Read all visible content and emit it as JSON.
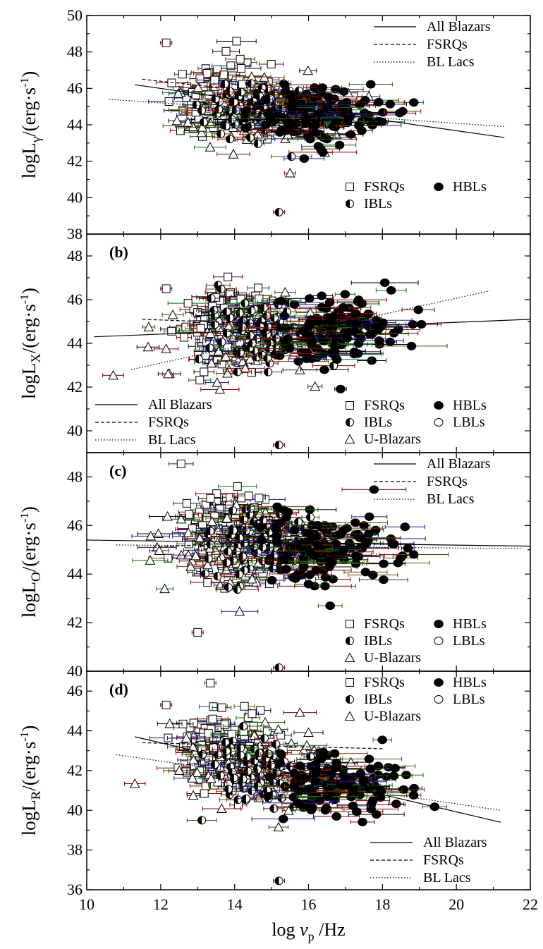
{
  "chart_data": [
    {
      "type": "scatter",
      "panel_label": "",
      "ylabel_main": "logL",
      "ylabel_sub": "γ",
      "ylabel_unit": "/(erg·s",
      "ylabel_exp": "-1",
      "ylim": [
        38,
        50
      ],
      "yticks": [
        38,
        40,
        42,
        44,
        46,
        48,
        50
      ],
      "xlim": [
        10,
        22
      ],
      "lines": [
        {
          "name": "All Blazars",
          "style": "solid",
          "x": [
            11.3,
            21.3
          ],
          "y": [
            46.2,
            43.3
          ]
        },
        {
          "name": "FSRQs",
          "style": "dashed",
          "x": [
            11.5,
            17.0
          ],
          "y": [
            46.5,
            45.3
          ]
        },
        {
          "name": "BL Lacs",
          "style": "dotted",
          "x": [
            10.6,
            21.3
          ],
          "y": [
            45.4,
            43.9
          ]
        }
      ],
      "line_legend_pos": "top-right",
      "marker_legend": [
        "FSRQs",
        "HBLs",
        "IBLs"
      ],
      "marker_legend_pos": "bottom-right",
      "outliers": [
        {
          "cls": "IBLs",
          "x": 15.2,
          "y": 39.2
        },
        {
          "cls": "FSRQs",
          "x": 12.15,
          "y": 48.5
        },
        {
          "cls": "U-Blazars",
          "x": 15.5,
          "y": 41.35
        }
      ],
      "cloud": {
        "fsrq": [
          13.8,
          1.0,
          45.3,
          1.4
        ],
        "ibl": [
          14.6,
          1.0,
          45.0,
          1.0
        ],
        "hbl": [
          16.2,
          1.3,
          44.5,
          1.0
        ],
        "ub": [
          14.5,
          1.8,
          44.5,
          1.4
        ]
      }
    },
    {
      "type": "scatter",
      "panel_label": "(b)",
      "ylabel_main": "logL",
      "ylabel_sub": "X",
      "ylabel_unit": "/(erg·s",
      "ylabel_exp": "-1",
      "ylim": [
        39,
        49
      ],
      "yticks": [
        40,
        42,
        44,
        46,
        48
      ],
      "xlim": [
        10,
        22
      ],
      "lines": [
        {
          "name": "All Blazars",
          "style": "solid",
          "x": [
            10.2,
            22.0
          ],
          "y": [
            44.3,
            45.1
          ]
        },
        {
          "name": "FSRQs",
          "style": "dashed",
          "x": [
            11.5,
            16.5
          ],
          "y": [
            45.1,
            44.8
          ]
        },
        {
          "name": "BL Lacs",
          "style": "dotted",
          "x": [
            11.2,
            20.9
          ],
          "y": [
            42.8,
            46.4
          ]
        }
      ],
      "line_legend_pos": "bottom-left",
      "marker_legend": [
        "FSRQs",
        "HBLs",
        "IBLs",
        "LBLs",
        "U-Blazars"
      ],
      "marker_legend_pos": "bottom-right",
      "outliers": [
        {
          "cls": "IBLs",
          "x": 15.2,
          "y": 39.35
        },
        {
          "cls": "FSRQs",
          "x": 12.15,
          "y": 46.5
        },
        {
          "cls": "U-Blazars",
          "x": 12.2,
          "y": 42.6
        }
      ],
      "cloud": {
        "fsrq": [
          13.8,
          0.9,
          44.8,
          1.1
        ],
        "ibl": [
          14.7,
          1.0,
          44.6,
          1.0
        ],
        "hbl": [
          16.8,
          1.3,
          44.7,
          1.1
        ],
        "ub": [
          14.2,
          1.5,
          44.0,
          1.3
        ]
      }
    },
    {
      "type": "scatter",
      "panel_label": "(c)",
      "ylabel_main": "logL",
      "ylabel_sub": "O",
      "ylabel_unit": "/(erg·s",
      "ylabel_exp": "-1",
      "ylim": [
        40,
        49
      ],
      "yticks": [
        40,
        42,
        44,
        46,
        48
      ],
      "xlim": [
        10,
        22
      ],
      "lines": [
        {
          "name": "All Blazars",
          "style": "solid",
          "x": [
            10.0,
            22.0
          ],
          "y": [
            45.4,
            45.15
          ]
        },
        {
          "name": "FSRQs",
          "style": "dashed",
          "x": [
            11.8,
            16.5
          ],
          "y": [
            45.1,
            45.5
          ]
        },
        {
          "name": "BL Lacs",
          "style": "dotted",
          "x": [
            10.8,
            21.8
          ],
          "y": [
            45.2,
            45.05
          ]
        }
      ],
      "line_legend_pos": "top-right",
      "marker_legend": [
        "FSRQs",
        "HBLs",
        "IBLs",
        "LBLs",
        "U-Blazars"
      ],
      "marker_legend_pos": "bottom-right",
      "outliers": [
        {
          "cls": "IBLs",
          "x": 15.2,
          "y": 40.15
        },
        {
          "cls": "FSRQs",
          "x": 13.0,
          "y": 41.6
        }
      ],
      "cloud": {
        "fsrq": [
          13.8,
          0.9,
          45.6,
          1.1
        ],
        "ibl": [
          14.7,
          1.0,
          45.3,
          1.0
        ],
        "hbl": [
          16.5,
          1.3,
          45.0,
          1.0
        ],
        "ub": [
          14.0,
          1.5,
          45.0,
          1.2
        ]
      }
    },
    {
      "type": "scatter",
      "panel_label": "(d)",
      "ylabel_main": "logL",
      "ylabel_sub": "R",
      "ylabel_unit": "/(erg·s",
      "ylabel_exp": "-1",
      "ylim": [
        36,
        47
      ],
      "yticks": [
        36,
        38,
        40,
        42,
        44,
        46
      ],
      "xlim": [
        10,
        22
      ],
      "xticks": [
        10,
        12,
        14,
        16,
        18,
        20,
        22
      ],
      "xlabel_main": "log",
      "xlabel_nu": "ν",
      "xlabel_sub": "p",
      "xlabel_unit": "/Hz",
      "lines": [
        {
          "name": "All Blazars",
          "style": "solid",
          "x": [
            11.3,
            21.2
          ],
          "y": [
            43.7,
            39.4
          ]
        },
        {
          "name": "FSRQs",
          "style": "dashed",
          "x": [
            11.5,
            18.0
          ],
          "y": [
            43.4,
            43.1
          ]
        },
        {
          "name": "BL Lacs",
          "style": "dotted",
          "x": [
            10.8,
            21.2
          ],
          "y": [
            42.8,
            40.0
          ]
        }
      ],
      "line_legend_pos": "bottom-right",
      "marker_legend": [
        "FSRQs",
        "HBLs",
        "IBLs",
        "LBLs",
        "U-Blazars"
      ],
      "marker_legend_pos": "top-right",
      "outliers": [
        {
          "cls": "IBLs",
          "x": 15.2,
          "y": 36.45
        },
        {
          "cls": "FSRQs",
          "x": 12.15,
          "y": 45.3
        }
      ],
      "cloud": {
        "fsrq": [
          13.7,
          0.9,
          43.0,
          1.2
        ],
        "ibl": [
          14.7,
          1.0,
          42.0,
          1.2
        ],
        "hbl": [
          16.8,
          1.3,
          41.3,
          1.1
        ],
        "ub": [
          14.5,
          1.6,
          42.2,
          1.3
        ]
      }
    }
  ]
}
